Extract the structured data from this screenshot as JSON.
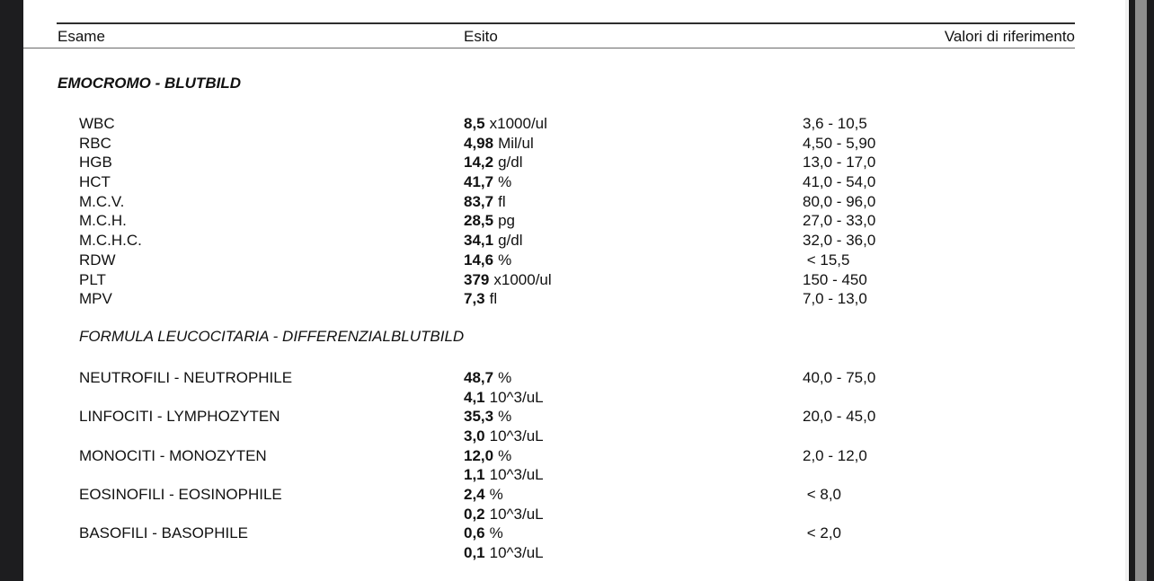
{
  "viewer": {
    "left_bar_color": "#1d1d1f",
    "scrollbar_track_color": "#1b1b1d",
    "scrollbar_thumb_color": "#8e8e8e",
    "page_color": "#ffffff",
    "text_color": "#111111"
  },
  "table": {
    "headers": {
      "exam": "Esame",
      "result": "Esito",
      "reference": "Valori di riferimento"
    },
    "sections": [
      {
        "title": "EMOCROMO - BLUTBILD",
        "rows": [
          {
            "name": "WBC",
            "value": "8,5",
            "unit": "x1000/ul",
            "ref": "3,6 - 10,5"
          },
          {
            "name": "RBC",
            "value": "4,98",
            "unit": "Mil/ul",
            "ref": "4,50 - 5,90"
          },
          {
            "name": "HGB",
            "value": "14,2",
            "unit": "g/dl",
            "ref": "13,0 - 17,0"
          },
          {
            "name": "HCT",
            "value": "41,7",
            "unit": "%",
            "ref": "41,0 - 54,0"
          },
          {
            "name": "M.C.V.",
            "value": "83,7",
            "unit": "fl",
            "ref": "80,0 - 96,0"
          },
          {
            "name": "M.C.H.",
            "value": "28,5",
            "unit": "pg",
            "ref": "27,0 - 33,0"
          },
          {
            "name": "M.C.H.C.",
            "value": "34,1",
            "unit": "g/dl",
            "ref": "32,0 - 36,0"
          },
          {
            "name": "RDW",
            "value": "14,6",
            "unit": "%",
            "ref": " < 15,5"
          },
          {
            "name": "PLT",
            "value": "379",
            "unit": "x1000/ul",
            "ref": "150 - 450"
          },
          {
            "name": "MPV",
            "value": "7,3",
            "unit": "fl",
            "ref": "7,0 - 13,0"
          }
        ]
      },
      {
        "title": "FORMULA LEUCOCITARIA - DIFFERENZIALBLUTBILD",
        "rows": [
          {
            "name": "NEUTROFILI - NEUTROPHILE",
            "pct_value": "48,7",
            "pct_unit": "%",
            "abs_value": "4,1",
            "abs_unit": "10^3/uL",
            "ref": "40,0 - 75,0"
          },
          {
            "name": "LINFOCITI - LYMPHOZYTEN",
            "pct_value": "35,3",
            "pct_unit": "%",
            "abs_value": "3,0",
            "abs_unit": "10^3/uL",
            "ref": "20,0 - 45,0"
          },
          {
            "name": "MONOCITI - MONOZYTEN",
            "pct_value": "12,0",
            "pct_unit": "%",
            "abs_value": "1,1",
            "abs_unit": "10^3/uL",
            "ref": "2,0 - 12,0"
          },
          {
            "name": "EOSINOFILI - EOSINOPHILE",
            "pct_value": "2,4",
            "pct_unit": "%",
            "abs_value": "0,2",
            "abs_unit": "10^3/uL",
            "ref": " < 8,0"
          },
          {
            "name": "BASOFILI - BASOPHILE",
            "pct_value": "0,6",
            "pct_unit": "%",
            "abs_value": "0,1",
            "abs_unit": "10^3/uL",
            "ref": " < 2,0"
          }
        ]
      }
    ]
  }
}
